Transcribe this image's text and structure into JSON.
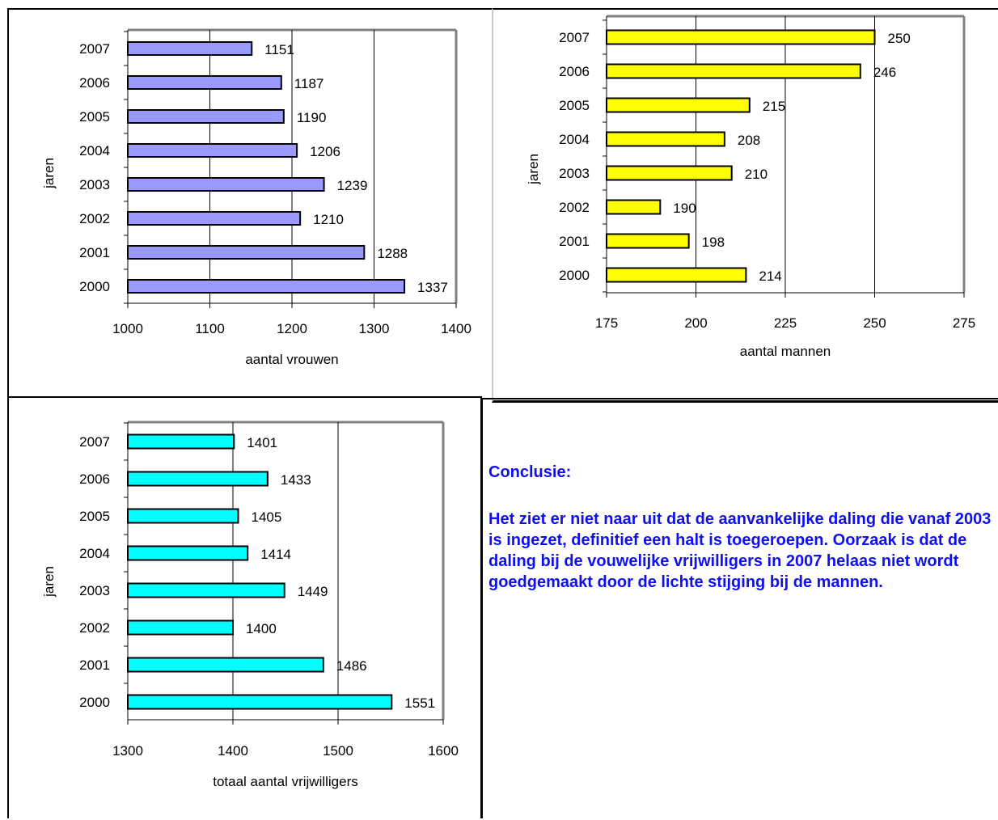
{
  "conclusion": {
    "heading": "Conclusie:",
    "text": "Het ziet er niet naar uit dat de aanvankelijke daling die vanaf 2003 is ingezet, definitief een halt is toegeroepen. Oorzaak is dat de daling bij de vouwelijke vrijwilligers in 2007 helaas niet wordt goedgemaakt door de lichte stijging bij de mannen."
  },
  "chart_data": [
    {
      "id": "women",
      "type": "bar",
      "orientation": "horizontal",
      "categories": [
        "2007",
        "2006",
        "2005",
        "2004",
        "2003",
        "2002",
        "2001",
        "2000"
      ],
      "values": [
        1151,
        1187,
        1190,
        1206,
        1239,
        1210,
        1288,
        1337
      ],
      "bar_color": "#9999ff",
      "xlabel": "aantal vrouwen",
      "ylabel": "jaren",
      "xlim": [
        1000,
        1400
      ],
      "xticks": [
        1000,
        1100,
        1200,
        1300,
        1400
      ],
      "grid": "vertical",
      "legend": "none"
    },
    {
      "id": "men",
      "type": "bar",
      "orientation": "horizontal",
      "categories": [
        "2007",
        "2006",
        "2005",
        "2004",
        "2003",
        "2002",
        "2001",
        "2000"
      ],
      "values": [
        250,
        246,
        215,
        208,
        210,
        190,
        198,
        214
      ],
      "bar_color": "#ffff00",
      "xlabel": "aantal mannen",
      "ylabel": "jaren",
      "xlim": [
        175,
        275
      ],
      "xticks": [
        175,
        200,
        225,
        250,
        275
      ],
      "grid": "vertical",
      "legend": "none"
    },
    {
      "id": "total",
      "type": "bar",
      "orientation": "horizontal",
      "categories": [
        "2007",
        "2006",
        "2005",
        "2004",
        "2003",
        "2002",
        "2001",
        "2000"
      ],
      "values": [
        1401,
        1433,
        1405,
        1414,
        1449,
        1400,
        1486,
        1551
      ],
      "bar_color": "#00ffff",
      "xlabel": "totaal aantal vrijwilligers",
      "ylabel": "jaren",
      "xlim": [
        1300,
        1600
      ],
      "xticks": [
        1300,
        1400,
        1500,
        1600
      ],
      "grid": "vertical",
      "legend": "none"
    }
  ]
}
